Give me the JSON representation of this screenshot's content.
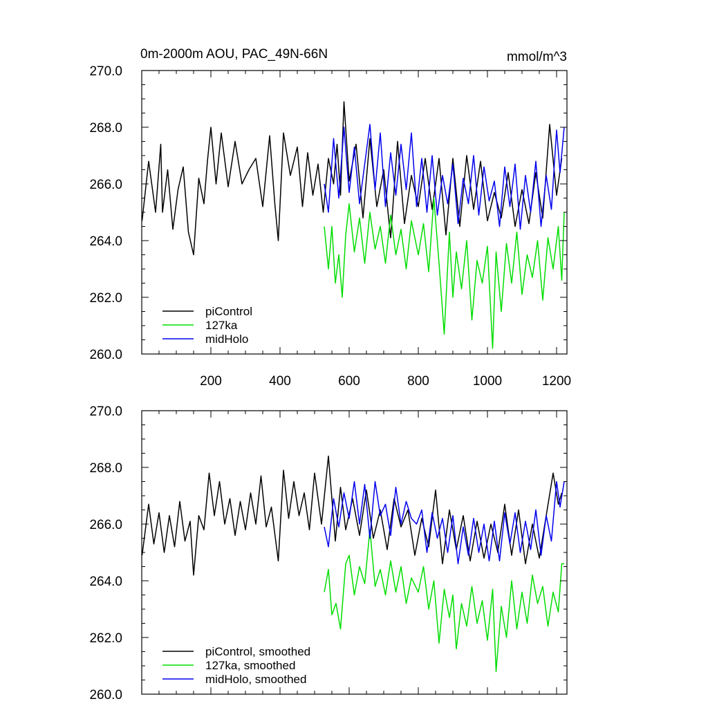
{
  "chart_data": [
    {
      "type": "line",
      "id": "top",
      "title": "0m-2000m AOU, PAC_49N-66N",
      "units": "mmol/m^3",
      "xlim": [
        0,
        1230
      ],
      "ylim": [
        260,
        270
      ],
      "yticks": [
        260,
        262,
        264,
        266,
        268,
        270
      ],
      "ytick_labels": [
        "260.0",
        "262.0",
        "264.0",
        "266.0",
        "268.0",
        "270.0"
      ],
      "xticks": [
        200,
        400,
        600,
        800,
        1000,
        1200
      ],
      "xtick_labels": [
        "200",
        "400",
        "600",
        "800",
        "1000",
        "1200"
      ],
      "legend_position": "bottom-left",
      "series": [
        {
          "name": "piControl",
          "color": "#000000",
          "x": [
            1,
            20,
            40,
            55,
            60,
            75,
            90,
            105,
            120,
            135,
            150,
            165,
            180,
            190,
            200,
            215,
            230,
            250,
            270,
            290,
            310,
            330,
            350,
            370,
            385,
            395,
            410,
            430,
            450,
            465,
            480,
            495,
            510,
            525,
            540,
            555,
            565,
            575,
            585,
            600,
            620,
            640,
            660,
            680,
            700,
            720,
            740,
            760,
            780,
            800,
            820,
            840,
            860,
            880,
            900,
            920,
            940,
            960,
            980,
            1000,
            1020,
            1040,
            1060,
            1080,
            1100,
            1120,
            1140,
            1160,
            1180,
            1200,
            1215
          ],
          "values": [
            264.7,
            266.8,
            265.0,
            267.4,
            265.0,
            266.5,
            264.4,
            265.8,
            266.6,
            264.3,
            263.5,
            266.2,
            265.3,
            266.8,
            268.0,
            266.0,
            267.8,
            265.9,
            267.5,
            266.0,
            266.5,
            266.9,
            265.2,
            267.7,
            265.3,
            264.0,
            267.8,
            266.3,
            267.3,
            265.2,
            267.1,
            265.6,
            266.7,
            265.0,
            266.9,
            266.0,
            267.4,
            265.6,
            268.9,
            266.1,
            267.4,
            264.8,
            267.6,
            265.2,
            266.5,
            264.1,
            267.5,
            264.6,
            266.3,
            265.2,
            266.9,
            265.1,
            266.9,
            264.2,
            266.9,
            264.5,
            267.0,
            265.1,
            266.8,
            264.7,
            265.7,
            264.8,
            266.4,
            264.5,
            265.8,
            264.6,
            266.4,
            264.8,
            268.1,
            265.6,
            266.9
          ]
        },
        {
          "name": "127ka",
          "color": "#00dd00",
          "x": [
            528,
            540,
            550,
            560,
            570,
            580,
            590,
            600,
            615,
            630,
            645,
            660,
            675,
            690,
            705,
            720,
            735,
            750,
            765,
            780,
            800,
            815,
            830,
            845,
            860,
            875,
            890,
            900,
            910,
            925,
            940,
            955,
            970,
            985,
            1000,
            1015,
            1025,
            1040,
            1055,
            1070,
            1085,
            1100,
            1115,
            1130,
            1145,
            1160,
            1175,
            1190,
            1205,
            1215,
            1222
          ],
          "values": [
            264.5,
            263.0,
            264.5,
            262.5,
            263.5,
            262.0,
            264.2,
            265.3,
            263.6,
            264.8,
            263.2,
            265.0,
            263.7,
            264.5,
            263.2,
            264.9,
            263.5,
            264.4,
            263.0,
            264.7,
            263.5,
            264.6,
            262.9,
            265.5,
            263.2,
            260.7,
            264.3,
            262.0,
            263.6,
            262.3,
            264.0,
            261.2,
            263.3,
            262.5,
            263.8,
            260.2,
            263.6,
            261.5,
            263.9,
            262.5,
            264.3,
            262.1,
            263.5,
            262.7,
            264.0,
            261.9,
            264.1,
            263.0,
            264.5,
            262.6,
            265.0
          ]
        },
        {
          "name": "midHolo",
          "color": "#0000ee",
          "x": [
            528,
            540,
            555,
            570,
            585,
            600,
            615,
            630,
            645,
            660,
            675,
            690,
            705,
            720,
            735,
            750,
            765,
            780,
            795,
            810,
            825,
            840,
            855,
            870,
            885,
            900,
            915,
            930,
            945,
            960,
            975,
            990,
            1005,
            1020,
            1035,
            1050,
            1065,
            1080,
            1095,
            1110,
            1125,
            1140,
            1155,
            1170,
            1185,
            1200,
            1210,
            1222
          ],
          "values": [
            266.0,
            265.0,
            267.6,
            265.5,
            268.0,
            265.7,
            267.3,
            265.3,
            266.7,
            268.1,
            265.8,
            267.8,
            265.2,
            267.1,
            265.6,
            267.4,
            265.8,
            267.8,
            265.2,
            266.9,
            265.0,
            267.0,
            264.9,
            266.3,
            265.3,
            266.7,
            264.6,
            266.2,
            265.3,
            267.0,
            264.9,
            266.6,
            265.4,
            266.1,
            264.5,
            266.6,
            265.2,
            266.7,
            264.4,
            266.3,
            265.0,
            266.8,
            264.5,
            266.3,
            265.1,
            267.9,
            266.4,
            268.0
          ]
        }
      ]
    },
    {
      "type": "line",
      "id": "bottom",
      "xlim": [
        0,
        1230
      ],
      "ylim": [
        260,
        270
      ],
      "yticks": [
        260,
        262,
        264,
        266,
        268,
        270
      ],
      "ytick_labels": [
        "260.0",
        "262.0",
        "264.0",
        "266.0",
        "268.0",
        "270.0"
      ],
      "xticks": [
        200,
        400,
        600,
        800,
        1000,
        1200
      ],
      "xtick_labels": [],
      "legend_position": "bottom-left",
      "series": [
        {
          "name": "piControl, smoothed",
          "color": "#000000",
          "x": [
            1,
            20,
            35,
            50,
            65,
            80,
            95,
            110,
            125,
            140,
            150,
            165,
            180,
            195,
            210,
            225,
            240,
            255,
            270,
            285,
            300,
            315,
            330,
            345,
            360,
            375,
            395,
            410,
            425,
            440,
            455,
            470,
            485,
            500,
            520,
            540,
            560,
            575,
            590,
            610,
            630,
            650,
            670,
            690,
            710,
            730,
            750,
            770,
            790,
            810,
            830,
            850,
            870,
            890,
            910,
            930,
            950,
            970,
            990,
            1010,
            1030,
            1050,
            1070,
            1090,
            1110,
            1130,
            1150,
            1170,
            1190,
            1205,
            1215
          ],
          "values": [
            264.9,
            266.7,
            265.3,
            266.4,
            265.0,
            266.3,
            265.2,
            266.8,
            265.4,
            266.1,
            264.2,
            266.3,
            265.8,
            267.8,
            266.3,
            267.5,
            266.0,
            266.9,
            265.6,
            266.8,
            265.8,
            267.1,
            266.0,
            267.7,
            265.9,
            266.6,
            264.7,
            267.9,
            266.2,
            267.5,
            266.3,
            267.1,
            265.8,
            267.8,
            266.0,
            268.4,
            265.4,
            267.3,
            265.8,
            266.9,
            265.6,
            267.2,
            265.5,
            266.5,
            265.1,
            266.9,
            265.9,
            266.5,
            264.9,
            266.2,
            265.2,
            267.2,
            264.6,
            266.5,
            265.1,
            266.3,
            264.7,
            266.1,
            264.8,
            266.0,
            265.0,
            266.7,
            264.9,
            266.5,
            264.6,
            266.0,
            264.8,
            266.3,
            267.8,
            266.7,
            267.1
          ]
        },
        {
          "name": "127ka, smoothed",
          "color": "#00dd00",
          "x": [
            528,
            540,
            550,
            562,
            575,
            590,
            600,
            615,
            630,
            645,
            660,
            675,
            690,
            705,
            720,
            735,
            750,
            765,
            780,
            800,
            815,
            830,
            845,
            860,
            875,
            890,
            900,
            910,
            925,
            940,
            955,
            970,
            985,
            1000,
            1015,
            1025,
            1040,
            1055,
            1070,
            1085,
            1100,
            1115,
            1130,
            1145,
            1160,
            1175,
            1190,
            1205,
            1215,
            1222
          ],
          "values": [
            263.6,
            264.4,
            262.8,
            263.2,
            262.3,
            264.6,
            264.9,
            263.5,
            264.5,
            263.9,
            265.8,
            263.8,
            264.4,
            263.5,
            264.7,
            263.6,
            264.5,
            263.2,
            264.1,
            263.6,
            264.5,
            263.0,
            264.0,
            261.8,
            263.7,
            262.7,
            263.5,
            261.6,
            263.2,
            262.4,
            263.8,
            262.5,
            263.3,
            261.9,
            263.7,
            260.8,
            263.1,
            262.0,
            264.0,
            262.3,
            263.6,
            262.5,
            264.2,
            263.2,
            263.8,
            262.4,
            263.6,
            262.9,
            264.6,
            264.6
          ]
        },
        {
          "name": "midHolo, smoothed",
          "color": "#0000ee",
          "x": [
            528,
            540,
            555,
            570,
            585,
            600,
            615,
            630,
            645,
            660,
            675,
            690,
            705,
            720,
            735,
            750,
            765,
            780,
            795,
            810,
            825,
            840,
            855,
            870,
            885,
            900,
            915,
            930,
            945,
            960,
            975,
            990,
            1005,
            1020,
            1035,
            1050,
            1065,
            1080,
            1095,
            1110,
            1125,
            1140,
            1155,
            1170,
            1185,
            1200,
            1210,
            1222
          ],
          "values": [
            265.9,
            265.2,
            266.9,
            265.9,
            267.1,
            266.2,
            267.5,
            266.0,
            267.4,
            265.5,
            267.5,
            266.3,
            266.7,
            265.6,
            267.3,
            266.0,
            266.8,
            266.2,
            266.0,
            266.5,
            265.0,
            266.4,
            265.5,
            266.2,
            265.0,
            266.3,
            264.6,
            265.9,
            264.9,
            266.2,
            265.0,
            266.0,
            264.7,
            266.1,
            264.7,
            266.4,
            265.3,
            266.4,
            265.0,
            266.1,
            265.1,
            266.5,
            264.9,
            266.3,
            265.4,
            267.5,
            266.6,
            267.5
          ]
        }
      ]
    }
  ]
}
